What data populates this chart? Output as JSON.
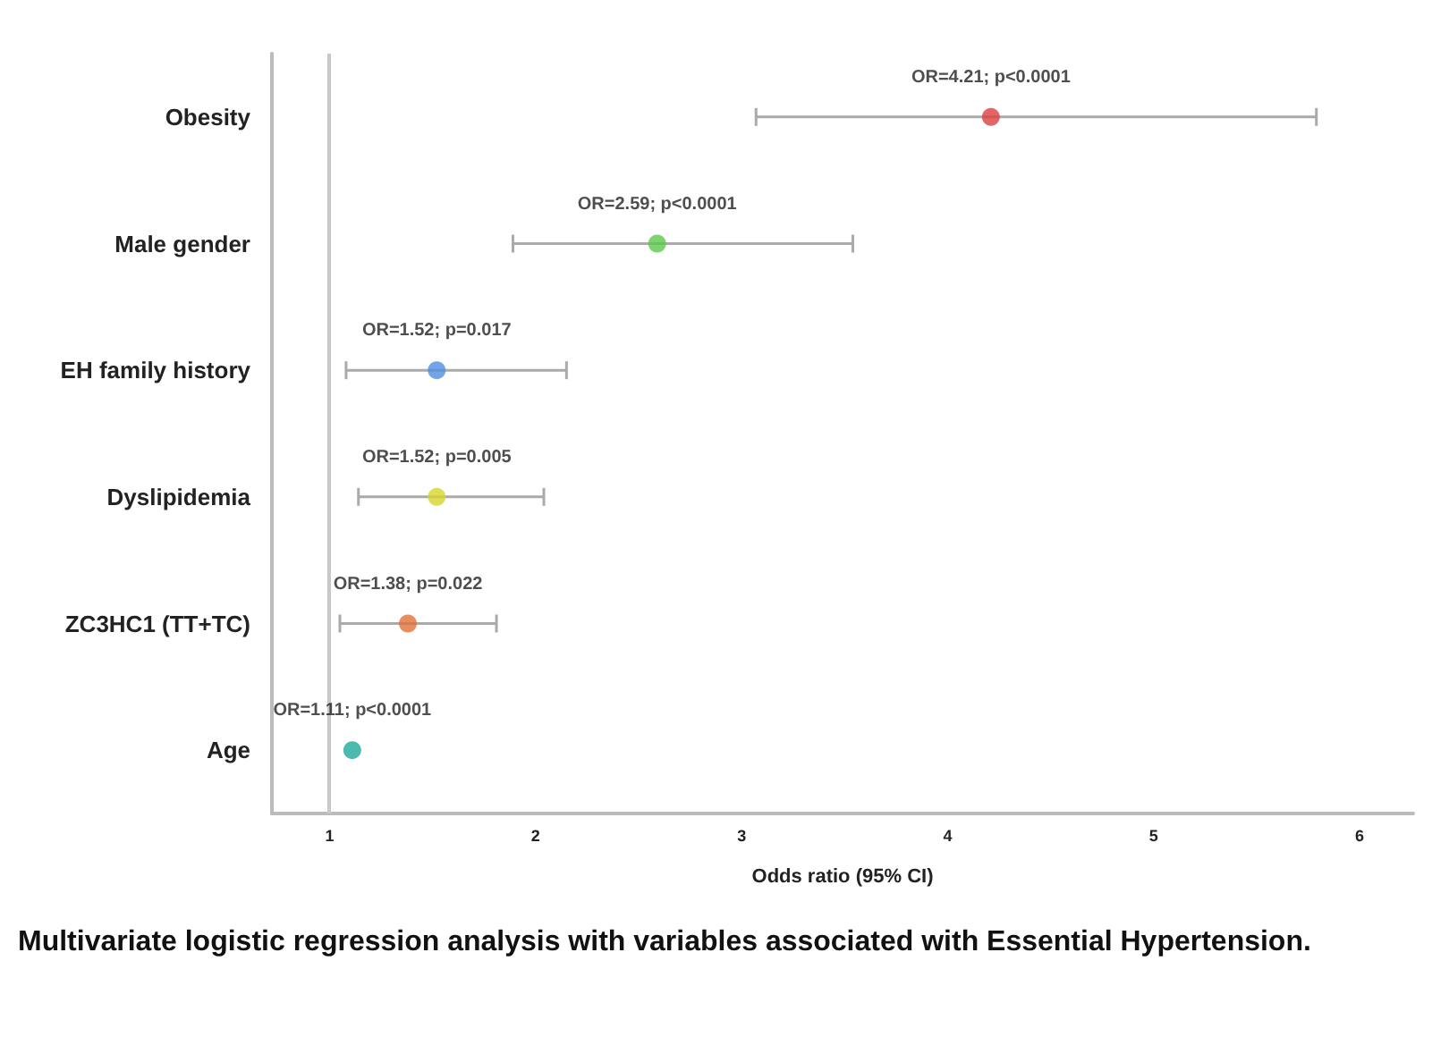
{
  "chart_data": {
    "type": "scatter",
    "orientation": "horizontal",
    "xlabel": "Odds ratio (95% CI)",
    "categories": [
      "Obesity",
      "Male gender",
      "EH family history",
      "Dyslipidemia",
      "ZC3HC1 (TT+TC)",
      "Age"
    ],
    "values": [
      4.21,
      2.59,
      1.52,
      1.52,
      1.38,
      1.11
    ],
    "errors": [
      [
        3.07,
        5.79
      ],
      [
        1.89,
        3.54
      ],
      [
        1.08,
        2.15
      ],
      [
        1.14,
        2.04
      ],
      [
        1.05,
        1.81
      ],
      null
    ],
    "colors": [
      "#d9403f",
      "#5cc94a",
      "#4f8fde",
      "#d6d62a",
      "#e0703a",
      "#20a99a"
    ],
    "value_labels": [
      "OR=4.21; p<0.0001",
      "OR=2.59; p<0.0001",
      "OR=1.52; p=0.017",
      "OR=1.52; p=0.005",
      "OR=1.38; p=0.022",
      "OR=1.11; p<0.0001"
    ],
    "xlim": [
      0.72,
      6.26
    ],
    "xticks": [
      1,
      2,
      3,
      4,
      5,
      6
    ],
    "grid": false,
    "marker": "circle",
    "ref_lines": [
      {
        "axis": "x",
        "value": 1,
        "color": "#c8c8c8"
      }
    ],
    "annotations": [
      "Multivariate logistic regression analysis with variables associated with Essential Hypertension."
    ]
  }
}
